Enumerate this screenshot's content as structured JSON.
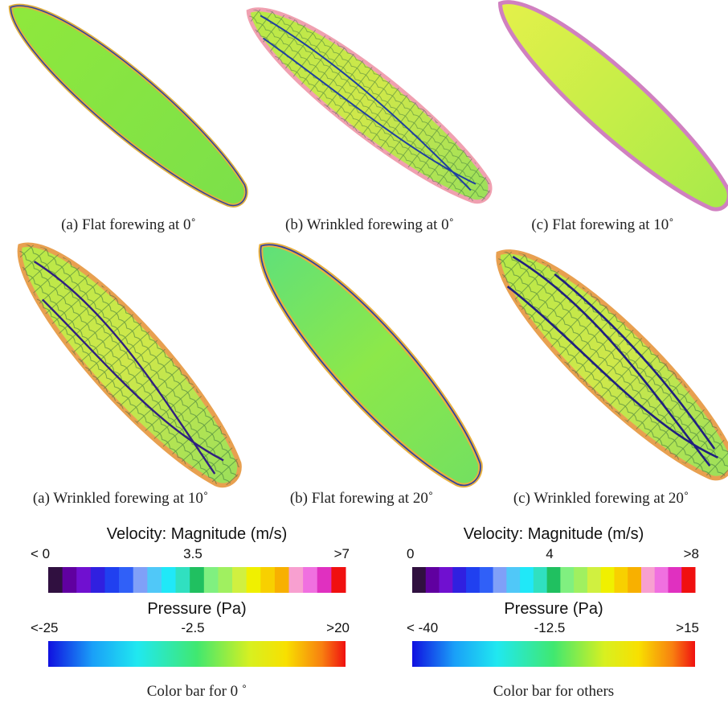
{
  "panels": [
    {
      "caption": "(a) Flat forewing at 0˚"
    },
    {
      "caption": "(b) Wrinkled forewing at 0˚"
    },
    {
      "caption": "(c) Flat forewing at 10˚"
    },
    {
      "caption": "(a) Wrinkled forewing at 10˚"
    },
    {
      "caption": "(b) Flat forewing at 20˚"
    },
    {
      "caption": "(c) Wrinkled forewing at 20˚"
    }
  ],
  "colorbars": [
    {
      "velocity_title": "Velocity: Magnitude (m/s)",
      "velocity_labels": [
        "< 0",
        "3.5",
        ">7"
      ],
      "pressure_title": "Pressure (Pa)",
      "pressure_labels": [
        "<-25",
        "-2.5",
        ">20"
      ],
      "caption": "Color bar for 0 ˚"
    },
    {
      "velocity_title": "Velocity: Magnitude (m/s)",
      "velocity_labels": [
        "0",
        "4",
        ">8"
      ],
      "pressure_title": "Pressure (Pa)",
      "pressure_labels": [
        "< -40",
        "-12.5",
        ">15"
      ],
      "caption": "Color bar for others"
    }
  ]
}
